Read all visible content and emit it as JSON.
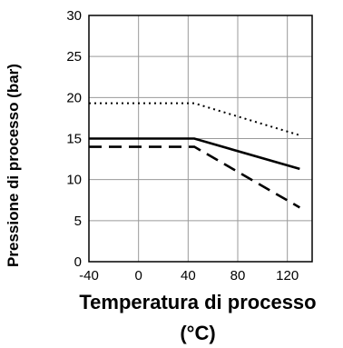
{
  "chart_data": {
    "type": "line",
    "title": "",
    "xlabel_line1": "Temperatura di processo",
    "xlabel_line2": "(°C)",
    "ylabel": "Pressione di processo (bar)",
    "xlim": [
      -40,
      140
    ],
    "ylim": [
      0,
      30
    ],
    "xticks": [
      -40,
      0,
      40,
      80,
      120
    ],
    "xtick_labels": [
      "-40",
      "0",
      "40",
      "80",
      "120"
    ],
    "yticks": [
      0,
      5,
      10,
      15,
      20,
      25,
      30
    ],
    "ytick_labels": [
      "0",
      "5",
      "10",
      "15",
      "20",
      "25",
      "30"
    ],
    "grid": true,
    "legend": "none",
    "series": [
      {
        "style": "dotted",
        "color": "#000000",
        "x": [
          -40,
          45,
          130
        ],
        "y": [
          19.3,
          19.3,
          15.4
        ]
      },
      {
        "style": "solid",
        "color": "#000000",
        "x": [
          -40,
          45,
          130
        ],
        "y": [
          15.0,
          15.0,
          11.3
        ]
      },
      {
        "style": "dashed",
        "color": "#000000",
        "x": [
          -40,
          45,
          130
        ],
        "y": [
          14.0,
          14.0,
          6.6
        ]
      }
    ]
  }
}
